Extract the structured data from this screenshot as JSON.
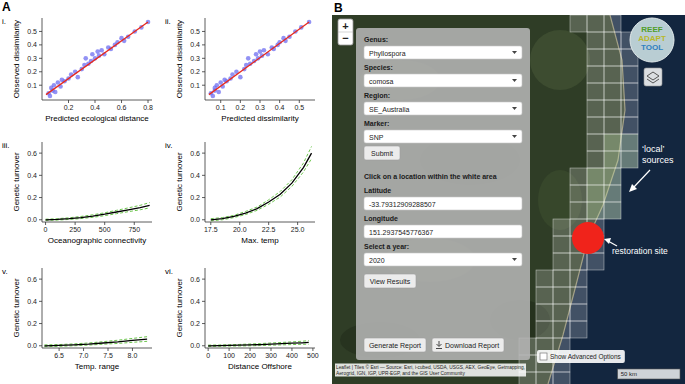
{
  "panel_a": {
    "label": "A"
  },
  "chart_data": [
    {
      "type": "scatter",
      "label": "i.",
      "x_label": "Predicted ecological distance",
      "y_label": "Observed dissimilarity",
      "xlim": [
        0,
        0.83
      ],
      "xticks": [
        0.2,
        0.4,
        0.6,
        0.8
      ],
      "ylim": [
        -0.01,
        0.6
      ],
      "yticks": [
        0.1,
        0.2,
        0.3,
        0.4,
        0.5
      ],
      "x": [
        0.05,
        0.06,
        0.07,
        0.08,
        0.09,
        0.1,
        0.12,
        0.14,
        0.15,
        0.17,
        0.2,
        0.22,
        0.25,
        0.27,
        0.3,
        0.32,
        0.33,
        0.35,
        0.37,
        0.38,
        0.4,
        0.42,
        0.43,
        0.45,
        0.47,
        0.5,
        0.52,
        0.55,
        0.57,
        0.6,
        0.62,
        0.65,
        0.7,
        0.75,
        0.8
      ],
      "series": [
        {
          "type": "scatter",
          "marker": "circle",
          "color": "#6e6ef0",
          "values": [
            0.04,
            0.02,
            0.08,
            0.06,
            0.1,
            0.05,
            0.12,
            0.09,
            0.14,
            0.13,
            0.15,
            0.18,
            0.2,
            0.16,
            0.22,
            0.25,
            0.3,
            0.26,
            0.28,
            0.33,
            0.3,
            0.35,
            0.32,
            0.36,
            0.33,
            0.38,
            0.37,
            0.4,
            0.42,
            0.45,
            0.43,
            0.46,
            0.5,
            0.53,
            0.57
          ]
        },
        {
          "type": "line",
          "line_style": "solid",
          "color": "#e8291c",
          "x": [
            0.03,
            0.8
          ],
          "values": [
            0.03,
            0.57
          ]
        }
      ]
    },
    {
      "type": "scatter",
      "label": "ii.",
      "x_label": "Predicted dissimilarity",
      "y_label": "Observed dissimilarity",
      "xlim": [
        0.02,
        0.58
      ],
      "xticks": [
        0.1,
        0.2,
        0.3,
        0.4,
        0.5
      ],
      "ylim": [
        -0.01,
        0.6
      ],
      "yticks": [
        0.1,
        0.2,
        0.3,
        0.4,
        0.5
      ],
      "x": [
        0.05,
        0.06,
        0.07,
        0.07,
        0.08,
        0.09,
        0.1,
        0.11,
        0.12,
        0.13,
        0.15,
        0.16,
        0.18,
        0.2,
        0.22,
        0.23,
        0.24,
        0.25,
        0.27,
        0.28,
        0.29,
        0.3,
        0.31,
        0.32,
        0.34,
        0.36,
        0.37,
        0.39,
        0.4,
        0.42,
        0.43,
        0.45,
        0.48,
        0.51,
        0.55
      ],
      "series": [
        {
          "type": "scatter",
          "marker": "circle",
          "color": "#6e6ef0",
          "values": [
            0.04,
            0.02,
            0.08,
            0.06,
            0.1,
            0.05,
            0.12,
            0.09,
            0.14,
            0.13,
            0.15,
            0.18,
            0.2,
            0.16,
            0.22,
            0.25,
            0.3,
            0.26,
            0.28,
            0.33,
            0.3,
            0.35,
            0.32,
            0.36,
            0.33,
            0.38,
            0.37,
            0.4,
            0.42,
            0.45,
            0.43,
            0.46,
            0.5,
            0.53,
            0.57
          ]
        },
        {
          "type": "line",
          "line_style": "solid",
          "color": "#e8291c",
          "x": [
            0.04,
            0.55
          ],
          "values": [
            0.03,
            0.57
          ]
        }
      ]
    },
    {
      "type": "line",
      "label": "iii.",
      "x_label": "Oceanographic connectivity",
      "y_label": "Genetic turnover",
      "xlim": [
        -30,
        900
      ],
      "xticks": [
        0,
        250,
        500,
        750
      ],
      "ylim": [
        -0.02,
        0.7
      ],
      "yticks": [
        {
          "value": 0,
          "label": "0.0"
        },
        0.2,
        0.4,
        0.6
      ],
      "x": [
        0,
        100,
        200,
        300,
        400,
        500,
        600,
        700,
        800,
        880
      ],
      "series": [
        {
          "color": "#5cbf3a",
          "line_style": "dashed",
          "values": [
            0.005,
            0.01,
            0.018,
            0.03,
            0.045,
            0.063,
            0.085,
            0.107,
            0.13,
            0.155
          ]
        },
        {
          "color": "#5cbf3a",
          "line_style": "dashed",
          "values": [
            -0.005,
            -0.003,
            0.003,
            0.011,
            0.022,
            0.037,
            0.055,
            0.073,
            0.09,
            0.107
          ]
        },
        {
          "color": "#000000",
          "line_style": "solid",
          "values": [
            0,
            0.003,
            0.01,
            0.02,
            0.033,
            0.05,
            0.07,
            0.09,
            0.11,
            0.13
          ]
        }
      ]
    },
    {
      "type": "line",
      "label": "iv.",
      "x_label": "Max. temp",
      "y_label": "Genetic turnover",
      "xlim": [
        17,
        26.5
      ],
      "xticks": [
        17.5,
        {
          "value": 20,
          "label": "20.0"
        },
        22.5,
        {
          "value": 25,
          "label": "25.0"
        }
      ],
      "ylim": [
        -0.02,
        0.7
      ],
      "yticks": [
        {
          "value": 0,
          "label": "0.0"
        },
        0.2,
        0.4,
        0.6
      ],
      "x": [
        17.5,
        18.5,
        19.5,
        20.5,
        21.5,
        22.5,
        23.5,
        24.5,
        25.5,
        26.2
      ],
      "series": [
        {
          "color": "#5cbf3a",
          "line_style": "dashed",
          "values": [
            0.01,
            0.02,
            0.04,
            0.075,
            0.115,
            0.18,
            0.255,
            0.36,
            0.51,
            0.66
          ]
        },
        {
          "color": "#5cbf3a",
          "line_style": "dashed",
          "values": [
            -0.01,
            0,
            0.02,
            0.047,
            0.085,
            0.14,
            0.205,
            0.3,
            0.43,
            0.55
          ]
        },
        {
          "color": "#000000",
          "line_style": "solid",
          "values": [
            0,
            0.01,
            0.03,
            0.06,
            0.1,
            0.16,
            0.23,
            0.33,
            0.47,
            0.6
          ]
        }
      ]
    },
    {
      "type": "line",
      "label": "v.",
      "x_label": "Temp. range",
      "y_label": "Genetic turnover",
      "xlim": [
        6.15,
        8.4
      ],
      "xticks": [
        6.5,
        {
          "value": 7,
          "label": "7.0"
        },
        7.5,
        {
          "value": 8,
          "label": "8.0"
        }
      ],
      "ylim": [
        -0.02,
        0.7
      ],
      "yticks": [
        {
          "value": 0,
          "label": "0.0"
        },
        0.2,
        0.4,
        0.6
      ],
      "x": [
        6.2,
        6.5,
        6.8,
        7.1,
        7.4,
        7.7,
        8.0,
        8.3
      ],
      "series": [
        {
          "color": "#5cbf3a",
          "line_style": "dashed",
          "values": [
            0.008,
            0.011,
            0.017,
            0.025,
            0.037,
            0.05,
            0.066,
            0.082
          ]
        },
        {
          "color": "#5cbf3a",
          "line_style": "dashed",
          "values": [
            -0.008,
            -0.005,
            0,
            0.006,
            0.014,
            0.021,
            0.031,
            0.04
          ]
        },
        {
          "color": "#000000",
          "line_style": "solid",
          "values": [
            0,
            0.003,
            0.008,
            0.015,
            0.025,
            0.035,
            0.048,
            0.06
          ]
        }
      ]
    },
    {
      "type": "line",
      "label": "vi.",
      "x_label": "Distance Offshore",
      "y_label": "Genetic turnover",
      "xlim": [
        -15,
        510
      ],
      "xticks": [
        0,
        100,
        200,
        300,
        400,
        500
      ],
      "ylim": [
        -0.02,
        0.7
      ],
      "yticks": [
        {
          "value": 0,
          "label": "0.0"
        },
        0.2,
        0.4,
        0.6
      ],
      "x": [
        0,
        50,
        100,
        150,
        200,
        250,
        300,
        350,
        400,
        450,
        480
      ],
      "series": [
        {
          "color": "#5cbf3a",
          "line_style": "dashed",
          "values": [
            0.006,
            0.007,
            0.009,
            0.012,
            0.016,
            0.02,
            0.025,
            0.03,
            0.035,
            0.041,
            0.046
          ]
        },
        {
          "color": "#5cbf3a",
          "line_style": "dashed",
          "values": [
            -0.006,
            -0.005,
            -0.003,
            -0.002,
            0,
            0.002,
            0.005,
            0.008,
            0.011,
            0.013,
            0.015
          ]
        },
        {
          "color": "#000000",
          "line_style": "solid",
          "values": [
            0,
            0.001,
            0.003,
            0.005,
            0.008,
            0.011,
            0.015,
            0.019,
            0.023,
            0.027,
            0.03
          ]
        }
      ]
    }
  ],
  "map_panel": {
    "label": "B",
    "zoom": [
      "+",
      "−"
    ],
    "logo": [
      "REEF",
      "ADAPT",
      "TOOL"
    ],
    "form": {
      "fields": [
        {
          "label": "Genus:",
          "value": "Phyllospora"
        },
        {
          "label": "Species:",
          "value": "comosa"
        },
        {
          "label": "Region:",
          "value": "SE_Australia"
        },
        {
          "label": "Marker:",
          "value": "SNP"
        }
      ],
      "submit": "Submit",
      "instruction": "Click on a location within the white area",
      "coordinates": [
        {
          "label": "Latitude",
          "value": "-33.79312909288507"
        },
        {
          "label": "Longitude",
          "value": "151.2937545776367"
        }
      ],
      "year": {
        "label": "Select a year:",
        "value": "2020"
      },
      "view": "View Results",
      "generate": "Generate Report",
      "download": "Download Report"
    },
    "advanced": "Show Advanced Options",
    "annotations": {
      "sources": "‘local’ sources",
      "site": "restoration site"
    },
    "scale": "50 km",
    "attribution": "Leaflet | Tiles © Esri — Source: Esri, i-cubed, USDA, USGS, AEX, GeoEye, Getmapping, Aerogrid, IGN, IGP, UPR-EGP, and the GIS User Community"
  }
}
